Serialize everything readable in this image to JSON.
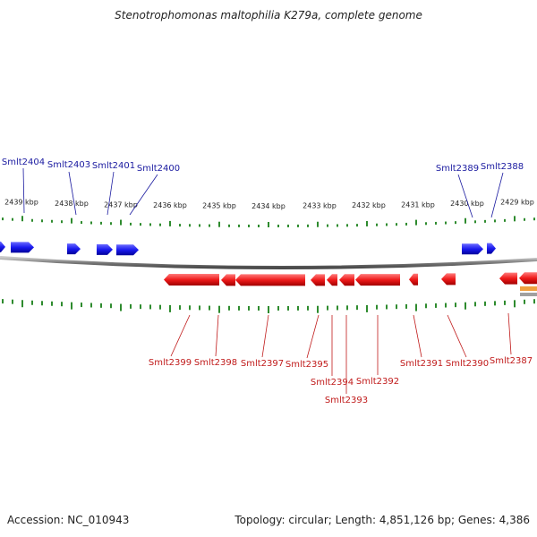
{
  "title": "Stenotrophomonas maltophilia K279a, complete genome",
  "footer": {
    "accession": "Accession: NC_010943",
    "summary": "Topology: circular; Length: 4,851,126 bp; Genes: 4,386"
  },
  "colors": {
    "forward_gene": "#1a1aee",
    "reverse_gene": "#ee1a1a",
    "tick": "#2e8b2e",
    "backbone": "#808080",
    "forward_label": "#1a1aa0",
    "reverse_label": "#c01a1a",
    "extra_feature": "#f0a040"
  },
  "ruler": {
    "unit": "kbp",
    "labels": [
      "2439 kbp",
      "2438 kbp",
      "2437 kbp",
      "2436 kbp",
      "2435 kbp",
      "2434 kbp",
      "2433 kbp",
      "2432 kbp",
      "2431 kbp",
      "2430 kbp",
      "2429 kbp"
    ]
  },
  "forward_genes": [
    {
      "name": "Smlt2404"
    },
    {
      "name": "Smlt2403"
    },
    {
      "name": "Smlt2401"
    },
    {
      "name": "Smlt2400"
    },
    {
      "name": "Smlt2389"
    },
    {
      "name": "Smlt2388"
    }
  ],
  "reverse_genes": [
    {
      "name": "Smlt2399"
    },
    {
      "name": "Smlt2398"
    },
    {
      "name": "Smlt2397"
    },
    {
      "name": "Smlt2395"
    },
    {
      "name": "Smlt2394"
    },
    {
      "name": "Smlt2393"
    },
    {
      "name": "Smlt2392"
    },
    {
      "name": "Smlt2391"
    },
    {
      "name": "Smlt2390"
    },
    {
      "name": "Smlt2387"
    }
  ]
}
